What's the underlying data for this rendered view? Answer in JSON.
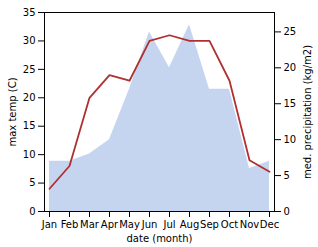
{
  "chart_data": {
    "type": "line",
    "categories": [
      "Jan",
      "Feb",
      "Mar",
      "Apr",
      "May",
      "Jun",
      "Jul",
      "Aug",
      "Sep",
      "Oct",
      "Nov",
      "Dec"
    ],
    "series": [
      {
        "type": "area",
        "color": "#c5d5f0",
        "axis": "y2",
        "values": [
          7,
          7,
          8,
          10,
          17,
          25,
          20,
          26,
          17,
          17,
          6,
          7
        ]
      },
      {
        "type": "line",
        "color": "#b03030",
        "values": [
          4,
          8,
          20,
          24,
          23,
          30,
          31,
          30,
          30,
          23,
          9,
          7
        ]
      }
    ],
    "xlabel": "date (month)",
    "ylabel": "max temp (C)",
    "y2label": "med. precipitation (kg/m2)",
    "ylim": [
      0,
      35
    ],
    "yticks": [
      0,
      5,
      10,
      15,
      20,
      25,
      30,
      35
    ],
    "y2lim": [
      0,
      27.7
    ],
    "y2ticks": [
      0,
      5,
      10,
      15,
      20,
      25
    ],
    "grid": false
  }
}
